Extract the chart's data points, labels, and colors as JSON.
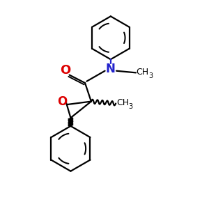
{
  "bg_color": "#ffffff",
  "bond_color": "#000000",
  "N_color": "#2222cc",
  "O_color": "#dd0000",
  "line_width": 1.6,
  "figsize": [
    3.0,
    3.0
  ],
  "dpi": 100,
  "xlim": [
    0,
    10
  ],
  "ylim": [
    0,
    10
  ]
}
